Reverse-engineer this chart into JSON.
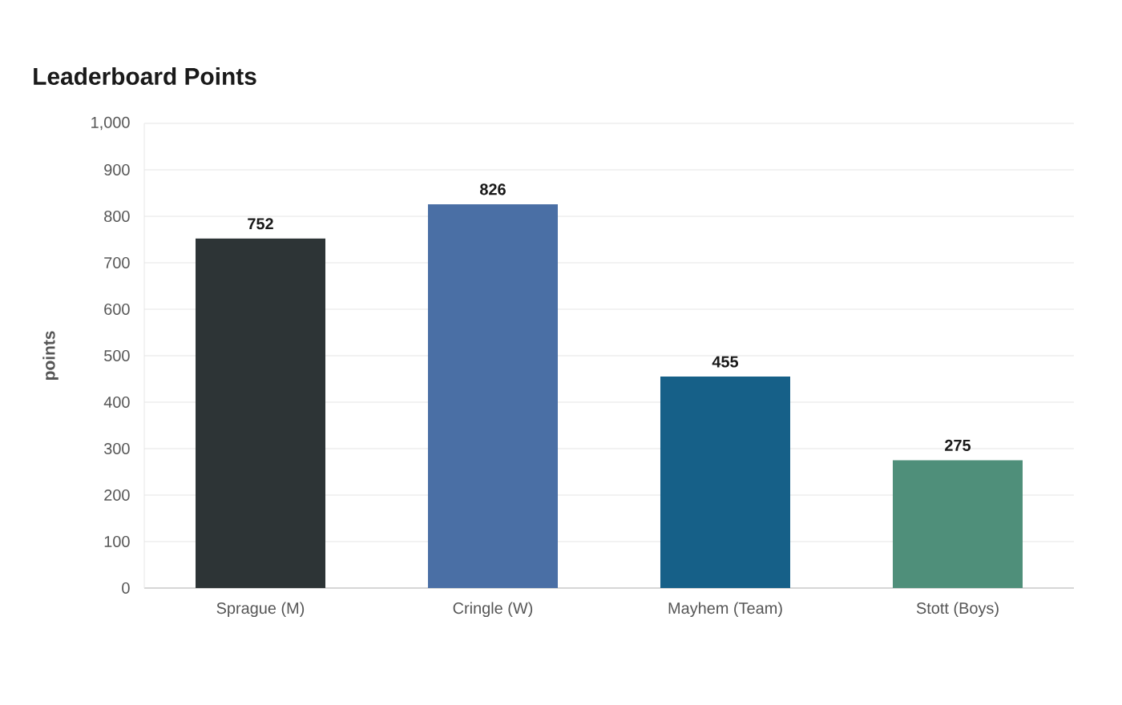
{
  "chart_data": {
    "type": "bar",
    "title": "Leaderboard Points",
    "ylabel": "points",
    "categories": [
      "Sprague (M)",
      "Cringle (W)",
      "Mayhem (Team)",
      "Stott (Boys)"
    ],
    "values": [
      752,
      826,
      455,
      275
    ],
    "colors": [
      "#2d3436",
      "#4a6fa5",
      "#166088",
      "#4f8f7a"
    ],
    "ylim": [
      0,
      1000
    ],
    "yticks": [
      0,
      100,
      200,
      300,
      400,
      500,
      600,
      700,
      800,
      900,
      {
        "value": 1000,
        "label": "1,000"
      }
    ],
    "grid": "y",
    "data_labels": true
  }
}
